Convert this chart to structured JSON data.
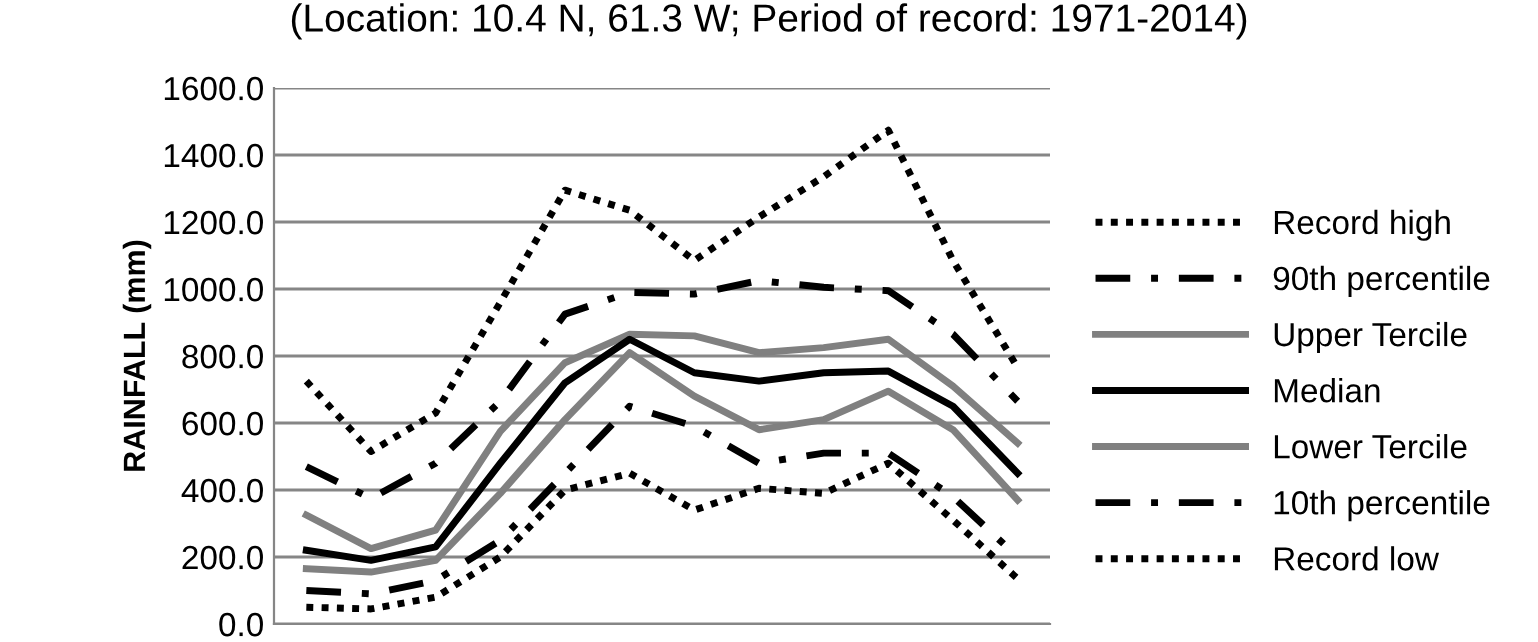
{
  "chart_data": {
    "type": "line",
    "title": "(Location: 10.4 N, 61.3 W; Period of record: 1971-2014)",
    "ylabel": "RAINFALL (mm)",
    "categories": [
      null,
      null,
      null,
      null,
      null,
      null,
      null,
      null,
      null,
      null,
      null,
      null
    ],
    "series": [
      {
        "name": "Record high",
        "color": "#000000",
        "line_style": "dotted",
        "values": [
          725,
          515,
          630,
          960,
          1295,
          1235,
          1085,
          1215,
          1335,
          1474,
          1085,
          765
        ]
      },
      {
        "name": "90th percentile",
        "color": "#000000",
        "line_style": "dashdot",
        "values": [
          470,
          375,
          480,
          665,
          925,
          990,
          985,
          1025,
          1005,
          995,
          865,
          665
        ]
      },
      {
        "name": "Upper Tercile",
        "color": "#808080",
        "line_style": "solid",
        "values": [
          325,
          225,
          280,
          575,
          780,
          865,
          860,
          810,
          825,
          850,
          710,
          540
        ]
      },
      {
        "name": "Median",
        "color": "#000000",
        "line_style": "solid",
        "values": [
          220,
          190,
          230,
          480,
          720,
          850,
          750,
          725,
          750,
          755,
          650,
          450
        ]
      },
      {
        "name": "Lower Tercile",
        "color": "#808080",
        "line_style": "solid",
        "values": [
          165,
          155,
          190,
          390,
          610,
          810,
          680,
          580,
          610,
          695,
          580,
          370
        ]
      },
      {
        "name": "10th percentile",
        "color": "#000000",
        "line_style": "dashdot",
        "values": [
          100,
          90,
          130,
          250,
          450,
          650,
          590,
          480,
          510,
          510,
          380,
          200
        ]
      },
      {
        "name": "Record low",
        "color": "#000000",
        "line_style": "dotted",
        "values": [
          50,
          45,
          80,
          200,
          400,
          450,
          340,
          405,
          390,
          480,
          310,
          135
        ]
      }
    ],
    "ylim": [
      0,
      1600
    ],
    "yticks": [
      {
        "value": 0,
        "label": "0.0"
      },
      {
        "value": 200,
        "label": "200.0"
      },
      {
        "value": 400,
        "label": "400.0"
      },
      {
        "value": 600,
        "label": "600.0"
      },
      {
        "value": 800,
        "label": "800.0"
      },
      {
        "value": 1000,
        "label": "1000.0"
      },
      {
        "value": 1200,
        "label": "1200.0"
      },
      {
        "value": 1400,
        "label": "1400.0"
      },
      {
        "value": 1600,
        "label": "1600.0"
      }
    ],
    "grid": "y",
    "legend": "right"
  }
}
